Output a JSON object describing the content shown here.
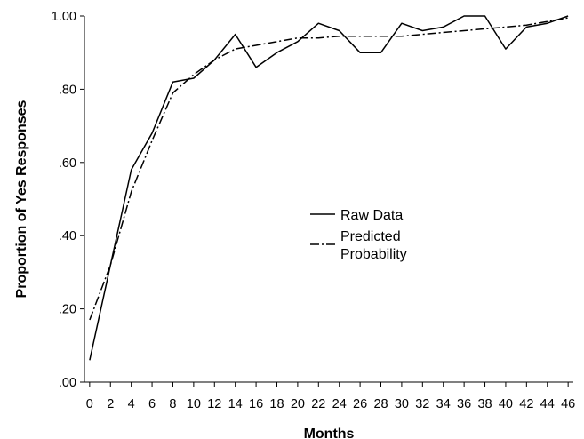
{
  "chart_data": {
    "type": "line",
    "title": "",
    "xlabel": "Months",
    "ylabel": "Proportion of Yes Responses",
    "xlim": [
      -0.5,
      46.5
    ],
    "ylim": [
      0,
      1
    ],
    "grid": false,
    "legend_position": "center",
    "x_ticks": [
      "0",
      "2",
      "4",
      "6",
      "8",
      "10",
      "12",
      "14",
      "16",
      "18",
      "20",
      "22",
      "24",
      "26",
      "28",
      "30",
      "32",
      "34",
      "36",
      "38",
      "40",
      "42",
      "44",
      "46"
    ],
    "y_ticks": [
      ".00",
      ".20",
      ".40",
      ".60",
      ".80",
      "1.00"
    ],
    "y_tick_values": [
      0,
      0.2,
      0.4,
      0.6,
      0.8,
      1.0
    ],
    "series": [
      {
        "name": "Raw Data",
        "style": "solid",
        "color": "#000000",
        "x": [
          0,
          2,
          4,
          6,
          8,
          10,
          12,
          14,
          16,
          18,
          20,
          22,
          24,
          26,
          28,
          30,
          32,
          34,
          36,
          38,
          40,
          42,
          44,
          46
        ],
        "y": [
          0.06,
          0.32,
          0.58,
          0.68,
          0.82,
          0.83,
          0.88,
          0.95,
          0.86,
          0.9,
          0.93,
          0.98,
          0.96,
          0.9,
          0.9,
          0.98,
          0.96,
          0.97,
          1.0,
          1.0,
          0.91,
          0.97,
          0.98,
          1.0
        ]
      },
      {
        "name": "Predicted Probability",
        "legend_lines": [
          "Predicted",
          "Probability"
        ],
        "style": "dash-dot",
        "color": "#000000",
        "x": [
          0,
          2,
          4,
          6,
          8,
          10,
          12,
          14,
          16,
          18,
          20,
          22,
          24,
          26,
          28,
          30,
          32,
          34,
          36,
          38,
          40,
          42,
          44,
          46
        ],
        "y": [
          0.17,
          0.32,
          0.52,
          0.66,
          0.79,
          0.84,
          0.88,
          0.91,
          0.92,
          0.93,
          0.94,
          0.94,
          0.945,
          0.945,
          0.945,
          0.945,
          0.95,
          0.955,
          0.96,
          0.965,
          0.97,
          0.975,
          0.985,
          0.995
        ]
      }
    ]
  }
}
